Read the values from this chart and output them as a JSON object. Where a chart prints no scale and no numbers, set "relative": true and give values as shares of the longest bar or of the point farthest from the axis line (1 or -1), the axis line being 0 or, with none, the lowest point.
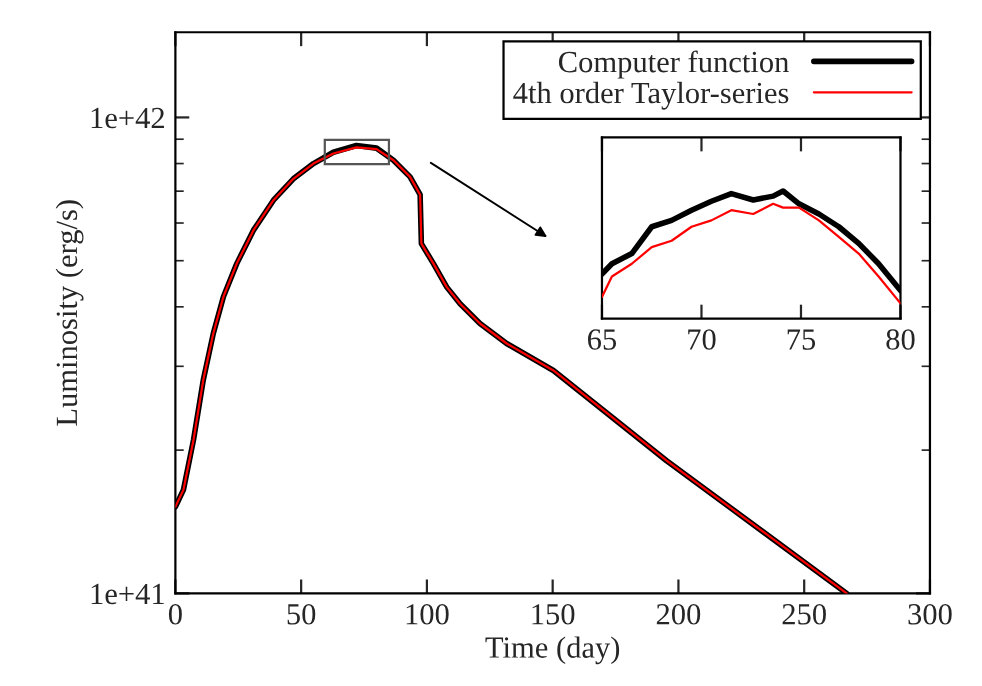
{
  "chart_data": [
    {
      "type": "line",
      "xlabel": "Time (day)",
      "ylabel": "Luminosity (erg/s)",
      "log": "y",
      "legend": "top right",
      "xlim": [
        0,
        300
      ],
      "xticks": [
        0,
        50,
        100,
        150,
        200,
        250,
        300
      ],
      "ylim": [
        1e+41,
        1.51e+42
      ],
      "yticks": [
        {
          "value": 1e+41,
          "label": "1e+41"
        },
        {
          "value": 1e+42,
          "label": "1e+42"
        }
      ],
      "series": [
        {
          "name": "Computer function",
          "color": "#000000",
          "x": [
            0,
            3.2,
            7.2,
            11.1,
            15.1,
            19.1,
            24.4,
            31,
            39,
            46.9,
            54.9,
            62.8,
            72,
            80,
            86.7,
            93.3,
            97.3,
            97.8,
            102.6,
            107.9,
            113.2,
            121.1,
            131.7,
            150.3,
            195.3,
            266.9
          ],
          "values": [
            1.52e+41,
            1.65e+41,
            2.1e+41,
            2.81e+41,
            3.52e+41,
            4.2e+41,
            4.93e+41,
            5.79e+41,
            6.7e+41,
            7.43e+41,
            8e+41,
            8.45e+41,
            8.73e+41,
            8.62e+41,
            8.13e+41,
            7.5e+41,
            6.88e+41,
            5.43e+41,
            4.93e+41,
            4.4e+41,
            4.06e+41,
            3.69e+41,
            3.35e+41,
            2.94e+41,
            1.9e+41,
            1e+41
          ]
        },
        {
          "name": "4th order Taylor-series",
          "color": "#ff0000",
          "x": [
            0,
            3.2,
            7.2,
            11.1,
            15.1,
            19.1,
            24.4,
            31,
            39,
            46.9,
            54.9,
            62.8,
            72,
            80,
            86.7,
            93.3,
            97.3,
            97.8,
            102.6,
            107.9,
            113.2,
            121.1,
            131.7,
            150.3,
            195.3,
            266.9
          ],
          "values": [
            1.52e+41,
            1.65e+41,
            2.1e+41,
            2.81e+41,
            3.52e+41,
            4.2e+41,
            4.93e+41,
            5.79e+41,
            6.7e+41,
            7.43e+41,
            8e+41,
            8.4e+41,
            8.65e+41,
            8.58e+41,
            8.13e+41,
            7.5e+41,
            6.88e+41,
            5.43e+41,
            4.93e+41,
            4.4e+41,
            4.06e+41,
            3.69e+41,
            3.35e+41,
            2.94e+41,
            1.9e+41,
            1e+41
          ]
        }
      ]
    },
    {
      "type": "line",
      "relative": true,
      "tick_labels": "x",
      "xlim": [
        65,
        80
      ],
      "xticks": [
        65,
        70,
        75,
        80
      ],
      "series": [
        {
          "color": "#000000",
          "x": [
            65,
            65.5,
            66.5,
            67.5,
            68.5,
            69.5,
            70.5,
            71.5,
            72.6,
            73.6,
            74.1,
            74.9,
            75.9,
            76.9,
            77.9,
            78.9,
            80
          ],
          "values": [
            0.35,
            0.43,
            0.51,
            0.72,
            0.77,
            0.85,
            0.92,
            0.98,
            0.93,
            0.96,
            1.0,
            0.9,
            0.82,
            0.72,
            0.59,
            0.43,
            0.22
          ]
        },
        {
          "color": "#ff0000",
          "x": [
            65,
            65.5,
            66.5,
            67.5,
            68.5,
            69.5,
            70.5,
            71.5,
            72.6,
            73.6,
            74.1,
            74.9,
            75.9,
            76.9,
            77.9,
            78.9,
            80
          ],
          "values": [
            0.17,
            0.33,
            0.43,
            0.56,
            0.61,
            0.72,
            0.77,
            0.85,
            0.82,
            0.9,
            0.87,
            0.87,
            0.77,
            0.64,
            0.51,
            0.33,
            0.12
          ]
        }
      ]
    }
  ]
}
